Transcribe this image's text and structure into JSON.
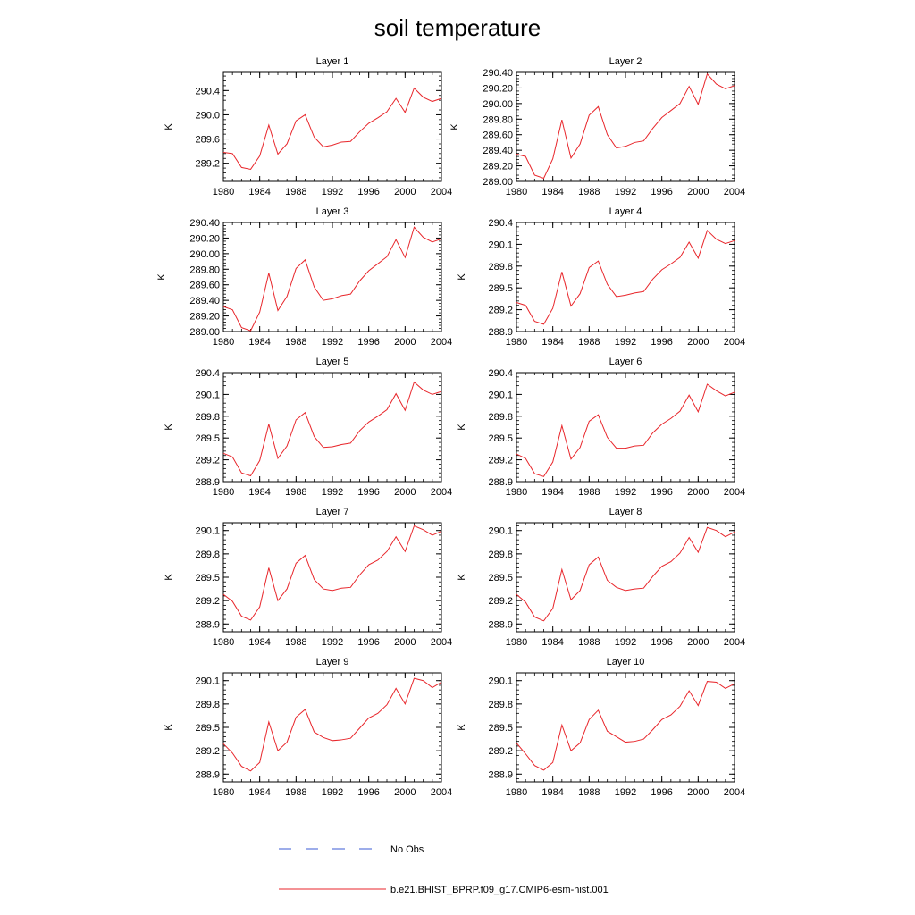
{
  "figure": {
    "title": "soil temperature",
    "legend": {
      "entries": [
        {
          "label": "No Obs",
          "color": "#3b5bd6",
          "dash": true
        },
        {
          "label": "b.e21.BHIST_BPRP.f09_g17.CMIP6-esm-hist.001",
          "color": "#e8262b",
          "dash": false
        }
      ]
    }
  },
  "chart_data": [
    {
      "type": "line",
      "title": "Layer 1",
      "ylabel": "K",
      "xlim": [
        1980,
        2004
      ],
      "ylim": [
        288.9,
        290.7
      ],
      "yticks": [
        289.2,
        289.6,
        290.0,
        290.4
      ],
      "ytick_labels": [
        "289.2",
        "289.6",
        "290.0",
        "290.4"
      ],
      "xticks": [
        1980,
        1984,
        1988,
        1992,
        1996,
        2000,
        2004
      ],
      "xtick_labels": [
        "1980",
        "1984",
        "1988",
        "1992",
        "1996",
        "2000",
        "2004"
      ],
      "series": [
        {
          "name": "b.e21.BHIST_BPRP.f09_g17.CMIP6-esm-hist.001",
          "color": "#e8262b",
          "x": [
            1980,
            1981,
            1982,
            1983,
            1984,
            1985,
            1986,
            1987,
            1988,
            1989,
            1990,
            1991,
            1992,
            1993,
            1994,
            1995,
            1996,
            1997,
            1998,
            1999,
            2000,
            2001,
            2002,
            2003,
            2004
          ],
          "y": [
            289.38,
            289.36,
            289.13,
            289.1,
            289.32,
            289.83,
            289.35,
            289.52,
            289.9,
            290.0,
            289.63,
            289.47,
            289.5,
            289.55,
            289.56,
            289.72,
            289.86,
            289.95,
            290.05,
            290.27,
            290.04,
            290.44,
            290.29,
            290.22,
            290.27
          ]
        }
      ]
    },
    {
      "type": "line",
      "title": "Layer 2",
      "ylabel": "K",
      "xlim": [
        1980,
        2004
      ],
      "ylim": [
        289.0,
        290.4
      ],
      "yticks": [
        289.0,
        289.2,
        289.4,
        289.6,
        289.8,
        290.0,
        290.2,
        290.4
      ],
      "ytick_labels": [
        "289.00",
        "289.20",
        "289.40",
        "289.60",
        "289.80",
        "290.00",
        "290.20",
        "290.40"
      ],
      "xticks": [
        1980,
        1984,
        1988,
        1992,
        1996,
        2000,
        2004
      ],
      "xtick_labels": [
        "1980",
        "1984",
        "1988",
        "1992",
        "1996",
        "2000",
        "2004"
      ],
      "series": [
        {
          "name": "b.e21.BHIST_BPRP.f09_g17.CMIP6-esm-hist.001",
          "color": "#e8262b",
          "x": [
            1980,
            1981,
            1982,
            1983,
            1984,
            1985,
            1986,
            1987,
            1988,
            1989,
            1990,
            1991,
            1992,
            1993,
            1994,
            1995,
            1996,
            1997,
            1998,
            1999,
            2000,
            2001,
            2002,
            2003,
            2004
          ],
          "y": [
            289.35,
            289.32,
            289.08,
            289.04,
            289.29,
            289.79,
            289.3,
            289.48,
            289.85,
            289.96,
            289.6,
            289.43,
            289.45,
            289.5,
            289.52,
            289.68,
            289.82,
            289.91,
            290.0,
            290.22,
            289.99,
            290.38,
            290.25,
            290.19,
            290.23
          ]
        }
      ]
    },
    {
      "type": "line",
      "title": "Layer 3",
      "ylabel": "K",
      "xlim": [
        1980,
        2004
      ],
      "ylim": [
        289.0,
        290.4
      ],
      "yticks": [
        289.0,
        289.2,
        289.4,
        289.6,
        289.8,
        290.0,
        290.2,
        290.4
      ],
      "ytick_labels": [
        "289.00",
        "289.20",
        "289.40",
        "289.60",
        "289.80",
        "290.00",
        "290.20",
        "290.40"
      ],
      "xticks": [
        1980,
        1984,
        1988,
        1992,
        1996,
        2000,
        2004
      ],
      "xtick_labels": [
        "1980",
        "1984",
        "1988",
        "1992",
        "1996",
        "2000",
        "2004"
      ],
      "series": [
        {
          "name": "b.e21.BHIST_BPRP.f09_g17.CMIP6-esm-hist.001",
          "color": "#e8262b",
          "x": [
            1980,
            1981,
            1982,
            1983,
            1984,
            1985,
            1986,
            1987,
            1988,
            1989,
            1990,
            1991,
            1992,
            1993,
            1994,
            1995,
            1996,
            1997,
            1998,
            1999,
            2000,
            2001,
            2002,
            2003,
            2004
          ],
          "y": [
            289.32,
            289.28,
            289.05,
            289.01,
            289.25,
            289.75,
            289.27,
            289.45,
            289.81,
            289.92,
            289.57,
            289.4,
            289.42,
            289.46,
            289.48,
            289.65,
            289.78,
            289.87,
            289.96,
            290.18,
            289.95,
            290.34,
            290.21,
            290.15,
            290.19
          ]
        }
      ]
    },
    {
      "type": "line",
      "title": "Layer 4",
      "ylabel": "K",
      "xlim": [
        1980,
        2004
      ],
      "ylim": [
        288.9,
        290.4
      ],
      "yticks": [
        288.9,
        289.2,
        289.5,
        289.8,
        290.1,
        290.4
      ],
      "ytick_labels": [
        "288.9",
        "289.2",
        "289.5",
        "289.8",
        "290.1",
        "290.4"
      ],
      "xticks": [
        1980,
        1984,
        1988,
        1992,
        1996,
        2000,
        2004
      ],
      "xtick_labels": [
        "1980",
        "1984",
        "1988",
        "1992",
        "1996",
        "2000",
        "2004"
      ],
      "series": [
        {
          "name": "b.e21.BHIST_BPRP.f09_g17.CMIP6-esm-hist.001",
          "color": "#e8262b",
          "x": [
            1980,
            1981,
            1982,
            1983,
            1984,
            1985,
            1986,
            1987,
            1988,
            1989,
            1990,
            1991,
            1992,
            1993,
            1994,
            1995,
            1996,
            1997,
            1998,
            1999,
            2000,
            2001,
            2002,
            2003,
            2004
          ],
          "y": [
            289.3,
            289.26,
            289.04,
            289.0,
            289.22,
            289.72,
            289.25,
            289.42,
            289.78,
            289.87,
            289.55,
            289.38,
            289.4,
            289.43,
            289.45,
            289.62,
            289.75,
            289.83,
            289.92,
            290.13,
            289.91,
            290.29,
            290.17,
            290.11,
            290.15
          ]
        }
      ]
    },
    {
      "type": "line",
      "title": "Layer 5",
      "ylabel": "K",
      "xlim": [
        1980,
        2004
      ],
      "ylim": [
        288.9,
        290.4
      ],
      "yticks": [
        288.9,
        289.2,
        289.5,
        289.8,
        290.1,
        290.4
      ],
      "ytick_labels": [
        "288.9",
        "289.2",
        "289.5",
        "289.8",
        "290.1",
        "290.4"
      ],
      "xticks": [
        1980,
        1984,
        1988,
        1992,
        1996,
        2000,
        2004
      ],
      "xtick_labels": [
        "1980",
        "1984",
        "1988",
        "1992",
        "1996",
        "2000",
        "2004"
      ],
      "series": [
        {
          "name": "b.e21.BHIST_BPRP.f09_g17.CMIP6-esm-hist.001",
          "color": "#e8262b",
          "x": [
            1980,
            1981,
            1982,
            1983,
            1984,
            1985,
            1986,
            1987,
            1988,
            1989,
            1990,
            1991,
            1992,
            1993,
            1994,
            1995,
            1996,
            1997,
            1998,
            1999,
            2000,
            2001,
            2002,
            2003,
            2004
          ],
          "y": [
            289.29,
            289.24,
            289.02,
            288.98,
            289.19,
            289.69,
            289.22,
            289.39,
            289.75,
            289.85,
            289.52,
            289.37,
            289.38,
            289.41,
            289.43,
            289.6,
            289.72,
            289.8,
            289.89,
            290.11,
            289.88,
            290.27,
            290.16,
            290.1,
            290.14
          ]
        }
      ]
    },
    {
      "type": "line",
      "title": "Layer 6",
      "ylabel": "K",
      "xlim": [
        1980,
        2004
      ],
      "ylim": [
        288.9,
        290.4
      ],
      "yticks": [
        288.9,
        289.2,
        289.5,
        289.8,
        290.1,
        290.4
      ],
      "ytick_labels": [
        "288.9",
        "289.2",
        "289.5",
        "289.8",
        "290.1",
        "290.4"
      ],
      "xticks": [
        1980,
        1984,
        1988,
        1992,
        1996,
        2000,
        2004
      ],
      "xtick_labels": [
        "1980",
        "1984",
        "1988",
        "1992",
        "1996",
        "2000",
        "2004"
      ],
      "series": [
        {
          "name": "b.e21.BHIST_BPRP.f09_g17.CMIP6-esm-hist.001",
          "color": "#e8262b",
          "x": [
            1980,
            1981,
            1982,
            1983,
            1984,
            1985,
            1986,
            1987,
            1988,
            1989,
            1990,
            1991,
            1992,
            1993,
            1994,
            1995,
            1996,
            1997,
            1998,
            1999,
            2000,
            2001,
            2002,
            2003,
            2004
          ],
          "y": [
            289.28,
            289.22,
            289.01,
            288.97,
            289.17,
            289.67,
            289.21,
            289.37,
            289.73,
            289.82,
            289.51,
            289.36,
            289.36,
            289.39,
            289.4,
            289.57,
            289.69,
            289.77,
            289.87,
            290.09,
            289.86,
            290.24,
            290.15,
            290.08,
            290.13
          ]
        }
      ]
    },
    {
      "type": "line",
      "title": "Layer 7",
      "ylabel": "K",
      "xlim": [
        1980,
        2004
      ],
      "ylim": [
        288.8,
        290.2
      ],
      "yticks": [
        288.9,
        289.2,
        289.5,
        289.8,
        290.1
      ],
      "ytick_labels": [
        "288.9",
        "289.2",
        "289.5",
        "289.8",
        "290.1"
      ],
      "xticks": [
        1980,
        1984,
        1988,
        1992,
        1996,
        2000,
        2004
      ],
      "xtick_labels": [
        "1980",
        "1984",
        "1988",
        "1992",
        "1996",
        "2000",
        "2004"
      ],
      "series": [
        {
          "name": "b.e21.BHIST_BPRP.f09_g17.CMIP6-esm-hist.001",
          "color": "#e8262b",
          "x": [
            1980,
            1981,
            1982,
            1983,
            1984,
            1985,
            1986,
            1987,
            1988,
            1989,
            1990,
            1991,
            1992,
            1993,
            1994,
            1995,
            1996,
            1997,
            1998,
            1999,
            2000,
            2001,
            2002,
            2003,
            2004
          ],
          "y": [
            289.28,
            289.19,
            289.0,
            288.95,
            289.12,
            289.62,
            289.2,
            289.35,
            289.68,
            289.78,
            289.47,
            289.35,
            289.33,
            289.36,
            289.37,
            289.53,
            289.66,
            289.72,
            289.83,
            290.02,
            289.83,
            290.16,
            290.11,
            290.04,
            290.09
          ]
        }
      ]
    },
    {
      "type": "line",
      "title": "Layer 8",
      "ylabel": "K",
      "xlim": [
        1980,
        2004
      ],
      "ylim": [
        288.8,
        290.2
      ],
      "yticks": [
        288.9,
        289.2,
        289.5,
        289.8,
        290.1
      ],
      "ytick_labels": [
        "288.9",
        "289.2",
        "289.5",
        "289.8",
        "290.1"
      ],
      "xticks": [
        1980,
        1984,
        1988,
        1992,
        1996,
        2000,
        2004
      ],
      "xtick_labels": [
        "1980",
        "1984",
        "1988",
        "1992",
        "1996",
        "2000",
        "2004"
      ],
      "series": [
        {
          "name": "b.e21.BHIST_BPRP.f09_g17.CMIP6-esm-hist.001",
          "color": "#e8262b",
          "x": [
            1980,
            1981,
            1982,
            1983,
            1984,
            1985,
            1986,
            1987,
            1988,
            1989,
            1990,
            1991,
            1992,
            1993,
            1994,
            1995,
            1996,
            1997,
            1998,
            1999,
            2000,
            2001,
            2002,
            2003,
            2004
          ],
          "y": [
            289.28,
            289.18,
            288.99,
            288.94,
            289.1,
            289.6,
            289.21,
            289.33,
            289.66,
            289.76,
            289.46,
            289.37,
            289.33,
            289.35,
            289.36,
            289.51,
            289.64,
            289.7,
            289.81,
            290.01,
            289.82,
            290.14,
            290.1,
            290.02,
            290.08
          ]
        }
      ]
    },
    {
      "type": "line",
      "title": "Layer 9",
      "ylabel": "K",
      "xlim": [
        1980,
        2004
      ],
      "ylim": [
        288.8,
        290.2
      ],
      "yticks": [
        288.9,
        289.2,
        289.5,
        289.8,
        290.1
      ],
      "ytick_labels": [
        "288.9",
        "289.2",
        "289.5",
        "289.8",
        "290.1"
      ],
      "xticks": [
        1980,
        1984,
        1988,
        1992,
        1996,
        2000,
        2004
      ],
      "xtick_labels": [
        "1980",
        "1984",
        "1988",
        "1992",
        "1996",
        "2000",
        "2004"
      ],
      "series": [
        {
          "name": "b.e21.BHIST_BPRP.f09_g17.CMIP6-esm-hist.001",
          "color": "#e8262b",
          "x": [
            1980,
            1981,
            1982,
            1983,
            1984,
            1985,
            1986,
            1987,
            1988,
            1989,
            1990,
            1991,
            1992,
            1993,
            1994,
            1995,
            1996,
            1997,
            1998,
            1999,
            2000,
            2001,
            2002,
            2003,
            2004
          ],
          "y": [
            289.29,
            289.17,
            289.0,
            288.94,
            289.05,
            289.57,
            289.2,
            289.31,
            289.63,
            289.73,
            289.44,
            289.37,
            289.33,
            289.34,
            289.36,
            289.49,
            289.62,
            289.68,
            289.79,
            290.0,
            289.8,
            290.13,
            290.1,
            290.01,
            290.08
          ]
        }
      ]
    },
    {
      "type": "line",
      "title": "Layer 10",
      "ylabel": "K",
      "xlim": [
        1980,
        2004
      ],
      "ylim": [
        288.8,
        290.2
      ],
      "yticks": [
        288.9,
        289.2,
        289.5,
        289.8,
        290.1
      ],
      "ytick_labels": [
        "288.9",
        "289.2",
        "289.5",
        "289.8",
        "290.1"
      ],
      "xticks": [
        1980,
        1984,
        1988,
        1992,
        1996,
        2000,
        2004
      ],
      "xtick_labels": [
        "1980",
        "1984",
        "1988",
        "1992",
        "1996",
        "2000",
        "2004"
      ],
      "series": [
        {
          "name": "b.e21.BHIST_BPRP.f09_g17.CMIP6-esm-hist.001",
          "color": "#e8262b",
          "x": [
            1980,
            1981,
            1982,
            1983,
            1984,
            1985,
            1986,
            1987,
            1988,
            1989,
            1990,
            1991,
            1992,
            1993,
            1994,
            1995,
            1996,
            1997,
            1998,
            1999,
            2000,
            2001,
            2002,
            2003,
            2004
          ],
          "y": [
            289.3,
            289.16,
            289.01,
            288.95,
            289.05,
            289.53,
            289.2,
            289.3,
            289.6,
            289.72,
            289.45,
            289.38,
            289.31,
            289.32,
            289.35,
            289.47,
            289.6,
            289.66,
            289.77,
            289.97,
            289.78,
            290.09,
            290.08,
            290.0,
            290.06
          ]
        }
      ]
    }
  ]
}
